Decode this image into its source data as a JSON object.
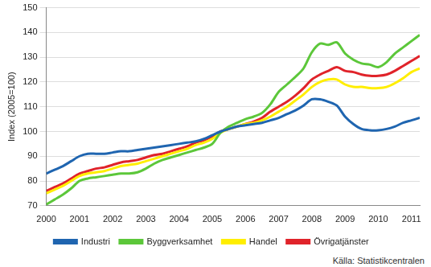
{
  "chart_data": {
    "type": "line",
    "ylabel": "Index (2005=100)",
    "annotations": [
      "Källa: Statistikcentralen"
    ],
    "x": [
      2000,
      2000.25,
      2000.5,
      2000.75,
      2001,
      2001.25,
      2001.5,
      2001.75,
      2002,
      2002.25,
      2002.5,
      2002.75,
      2003,
      2003.25,
      2003.5,
      2003.75,
      2004,
      2004.25,
      2004.5,
      2004.75,
      2005,
      2005.25,
      2005.5,
      2005.75,
      2006,
      2006.25,
      2006.5,
      2006.75,
      2007,
      2007.25,
      2007.5,
      2007.75,
      2008,
      2008.25,
      2008.5,
      2008.75,
      2009,
      2009.25,
      2009.5,
      2009.75,
      2010,
      2010.25,
      2010.5,
      2010.75,
      2011,
      2011.25
    ],
    "series": [
      {
        "name": "Industri",
        "color": "#1f65b0",
        "values": [
          83,
          84.5,
          86,
          88,
          90,
          91,
          91,
          91,
          91.5,
          92,
          92,
          92.5,
          93,
          93.5,
          94,
          94.5,
          95,
          95.5,
          96,
          97,
          98.5,
          100,
          101,
          102,
          102.5,
          103,
          103.5,
          104.5,
          105.5,
          107,
          108.5,
          110.5,
          113,
          113,
          112,
          110.5,
          106,
          103,
          101,
          100.5,
          100.5,
          101,
          102,
          103.5,
          104.5,
          105.5
        ]
      },
      {
        "name": "Byggverksamhet",
        "color": "#5cc73a",
        "values": [
          70.5,
          72.5,
          74.5,
          77,
          80,
          81,
          81.5,
          82,
          82.5,
          83,
          83,
          83.5,
          85,
          87,
          88.5,
          89.5,
          90.5,
          91.5,
          92.5,
          93.5,
          95,
          99.5,
          102,
          103.5,
          105,
          106,
          107.5,
          111,
          116,
          119,
          122,
          125.5,
          132,
          135.5,
          135,
          136,
          131.5,
          129,
          127.5,
          127,
          126,
          128,
          131.5,
          134,
          136.5,
          139
        ]
      },
      {
        "name": "Handel",
        "color": "#ffee00",
        "values": [
          75,
          76.5,
          78,
          80,
          82,
          83,
          83.5,
          84,
          85,
          86,
          86.5,
          87,
          88,
          89,
          90,
          91,
          92,
          93,
          94.5,
          95.5,
          97,
          99.5,
          101,
          102,
          103,
          103.5,
          104.5,
          106,
          108,
          110,
          112.5,
          115,
          118,
          120,
          121,
          121,
          119,
          118,
          118,
          117.5,
          117.5,
          118,
          119.5,
          121.5,
          124,
          125.5
        ]
      },
      {
        "name": "Övrigatjänster",
        "color": "#e0232a",
        "values": [
          76,
          77.5,
          79,
          81,
          83,
          84,
          85,
          85.5,
          86.5,
          87.5,
          88,
          88.5,
          89.5,
          90.5,
          91,
          92,
          93,
          94,
          95.5,
          96.5,
          98,
          100,
          101,
          102,
          103,
          104,
          105.5,
          108,
          110,
          112,
          114.5,
          117.5,
          121,
          123,
          124.5,
          126,
          124.5,
          124,
          123,
          122.5,
          122.5,
          123,
          124.5,
          126.5,
          128.5,
          130.5
        ]
      }
    ],
    "xlim": [
      2000,
      2011.25
    ],
    "xticks": [
      2000,
      2001,
      2002,
      2003,
      2004,
      2005,
      2006,
      2007,
      2008,
      2009,
      2010,
      2011
    ],
    "ylim": [
      70,
      150
    ],
    "yticks": [
      70,
      80,
      90,
      100,
      110,
      120,
      130,
      140,
      150
    ],
    "grid": true,
    "legend": "bottom"
  }
}
